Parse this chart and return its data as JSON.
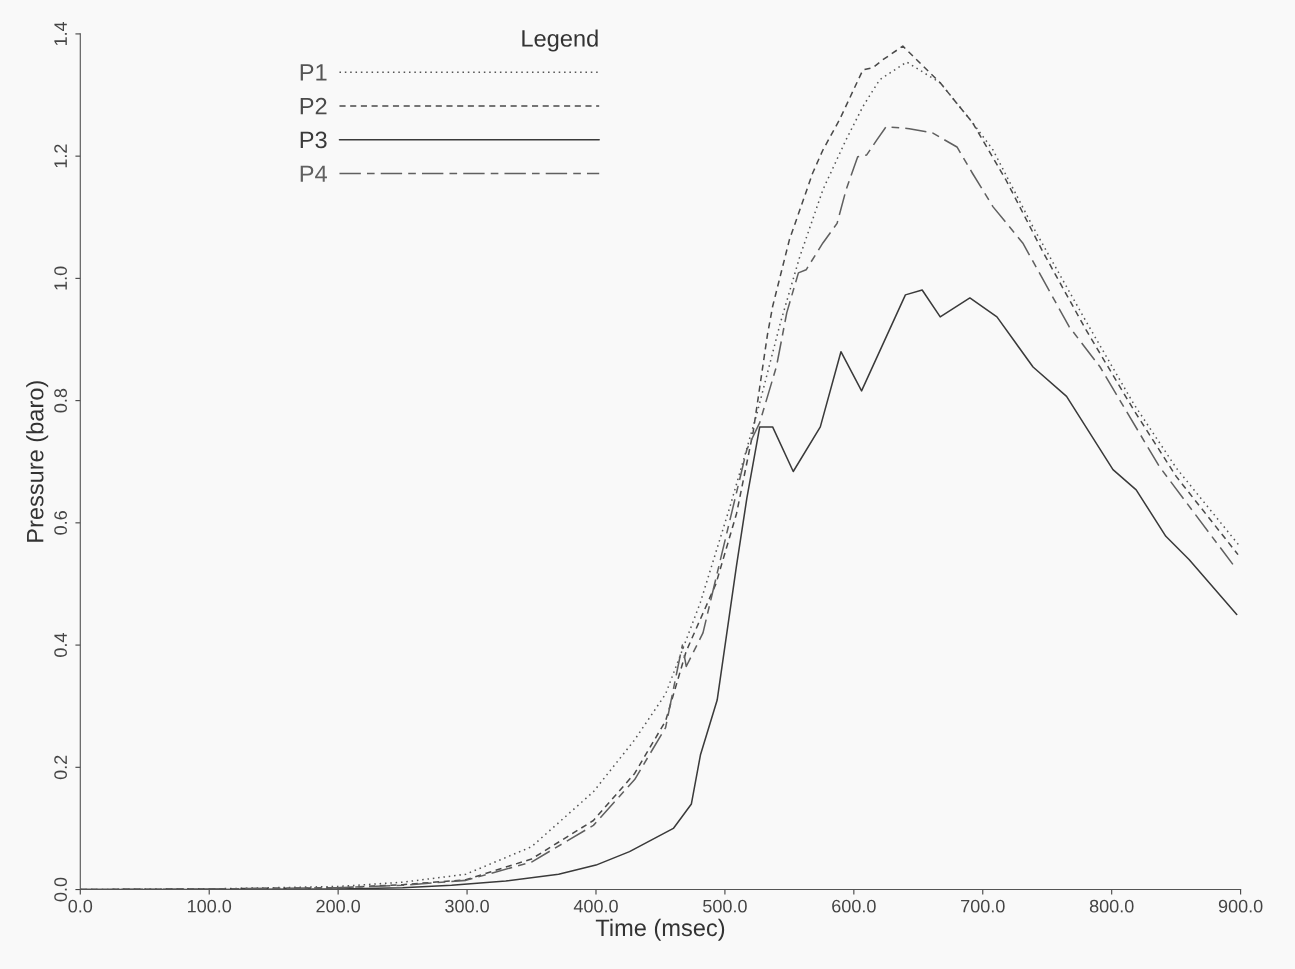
{
  "chart_data": {
    "type": "line",
    "xlabel": "Time (msec)",
    "ylabel": "Pressure (baro)",
    "legend_title": "Legend",
    "legend": "top left",
    "grid": false,
    "marker": "none",
    "xlim": [
      0,
      900
    ],
    "ylim": [
      0,
      1.4
    ],
    "xticks": [
      {
        "value": 0,
        "label": "0.0"
      },
      {
        "value": 100,
        "label": "100.0"
      },
      {
        "value": 200,
        "label": "200.0"
      },
      {
        "value": 300,
        "label": "300.0"
      },
      {
        "value": 400,
        "label": "400.0"
      },
      {
        "value": 500,
        "label": "500.0"
      },
      {
        "value": 600,
        "label": "600.0"
      },
      {
        "value": 700,
        "label": "700.0"
      },
      {
        "value": 800,
        "label": "800.0"
      },
      {
        "value": 900,
        "label": "900.0"
      }
    ],
    "yticks": [
      {
        "value": 0,
        "label": "0.0"
      },
      {
        "value": 0.2,
        "label": "0.2"
      },
      {
        "value": 0.4,
        "label": "0.4"
      },
      {
        "value": 0.6,
        "label": "0.6"
      },
      {
        "value": 0.8,
        "label": "0.8"
      },
      {
        "value": 1.0,
        "label": "1.0"
      },
      {
        "value": 1.2,
        "label": "1.2"
      },
      {
        "value": 1.4,
        "label": "1.4"
      }
    ],
    "series": [
      {
        "name": "P1",
        "color": "#555555",
        "line_style": "dotted",
        "x": [
          0,
          100,
          200,
          250,
          299,
          350,
          398,
          430,
          454,
          481,
          504,
          525,
          543,
          558,
          576,
          594,
          607,
          620,
          641,
          667,
          692,
          708,
          739,
          780,
          817,
          850,
          900
        ],
        "values": [
          0,
          0.001,
          0.005,
          0.012,
          0.025,
          0.07,
          0.16,
          0.245,
          0.32,
          0.47,
          0.627,
          0.78,
          0.927,
          1.035,
          1.145,
          1.227,
          1.281,
          1.325,
          1.354,
          1.32,
          1.255,
          1.21,
          1.084,
          0.93,
          0.795,
          0.69,
          0.56
        ]
      },
      {
        "name": "P2",
        "color": "#4a4a4a",
        "line_style": "dashed",
        "x": [
          0,
          100,
          200,
          250,
          299,
          350,
          398,
          430,
          454,
          470,
          493,
          509,
          522,
          533,
          537,
          550,
          568,
          576,
          589,
          607,
          615,
          622,
          638,
          667,
          692,
          718,
          747,
          780,
          817,
          850,
          898
        ],
        "values": [
          0,
          0.001,
          0.003,
          0.008,
          0.016,
          0.05,
          0.113,
          0.19,
          0.276,
          0.39,
          0.5,
          0.615,
          0.75,
          0.908,
          0.954,
          1.063,
          1.172,
          1.21,
          1.26,
          1.341,
          1.345,
          1.357,
          1.38,
          1.32,
          1.255,
          1.161,
          1.042,
          0.916,
          0.785,
          0.676,
          0.548
        ]
      },
      {
        "name": "P3",
        "color": "#3a3a3a",
        "line_style": "solid",
        "x": [
          0,
          100,
          200,
          250,
          288,
          330,
          371,
          400,
          426,
          460,
          474,
          481,
          494,
          509,
          517,
          527,
          537,
          553,
          574,
          590,
          606,
          640,
          653,
          667,
          690,
          711,
          739,
          765,
          801,
          819,
          842,
          860,
          897
        ],
        "values": [
          0,
          0,
          0.001,
          0.003,
          0.007,
          0.014,
          0.025,
          0.04,
          0.062,
          0.1,
          0.14,
          0.22,
          0.31,
          0.53,
          0.64,
          0.757,
          0.757,
          0.684,
          0.757,
          0.88,
          0.816,
          0.973,
          0.981,
          0.937,
          0.968,
          0.937,
          0.855,
          0.807,
          0.687,
          0.654,
          0.578,
          0.54,
          0.45
        ]
      },
      {
        "name": "P4",
        "color": "#606060",
        "line_style": "dashdot",
        "x": [
          0,
          100,
          200,
          250,
          299,
          350,
          398,
          430,
          454,
          467,
          470,
          483,
          492,
          517,
          527,
          540,
          548,
          557,
          563,
          576,
          587,
          594,
          603,
          610,
          618,
          625,
          643,
          661,
          680,
          692,
          708,
          731,
          767,
          791,
          837,
          894
        ],
        "values": [
          0,
          0.001,
          0.003,
          0.007,
          0.015,
          0.045,
          0.105,
          0.18,
          0.265,
          0.4,
          0.365,
          0.42,
          0.5,
          0.72,
          0.764,
          0.856,
          0.944,
          1.009,
          1.014,
          1.058,
          1.09,
          1.145,
          1.199,
          1.202,
          1.227,
          1.248,
          1.245,
          1.238,
          1.215,
          1.172,
          1.117,
          1.058,
          0.921,
          0.855,
          0.692,
          0.532
        ]
      }
    ]
  }
}
